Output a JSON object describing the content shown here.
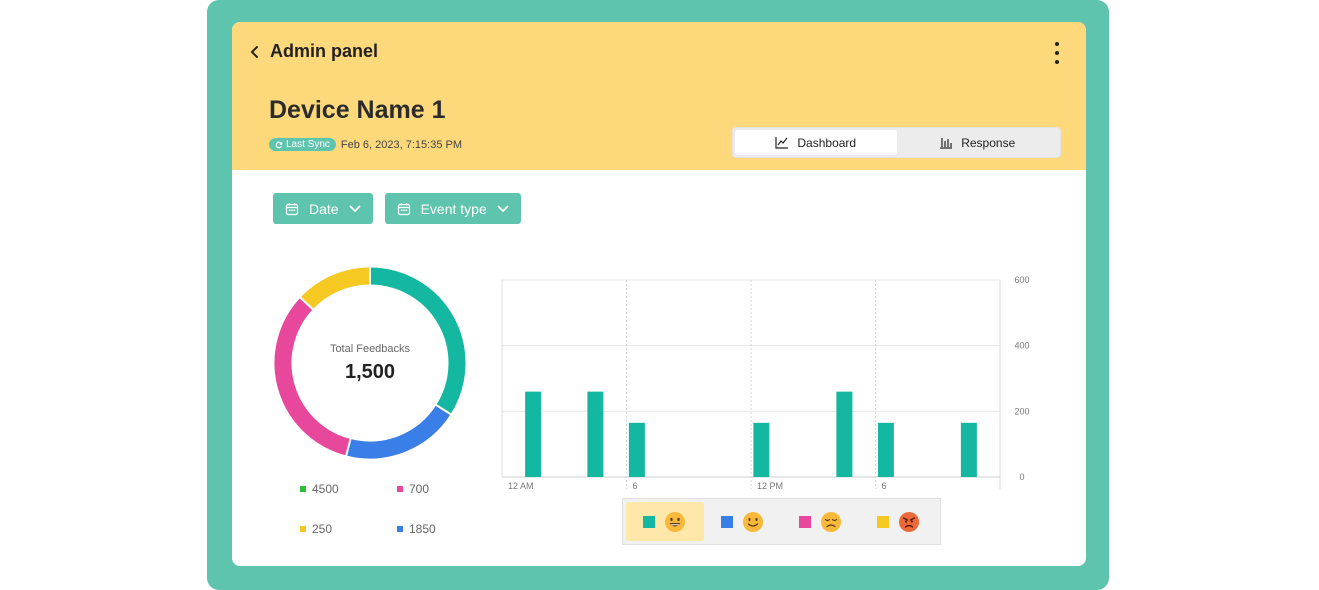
{
  "header": {
    "title": "Admin panel",
    "device_name": "Device Name 1",
    "sync_badge": "Last Sync",
    "sync_time": "Feb 6, 2023, 7:15:35 PM",
    "tabs": [
      {
        "label": "Dashboard",
        "icon": "line-chart-icon",
        "active": true
      },
      {
        "label": "Response",
        "icon": "bar-chart-icon",
        "active": false
      }
    ]
  },
  "filters": [
    {
      "label": "Date",
      "icon": "calendar-icon"
    },
    {
      "label": "Event type",
      "icon": "calendar-icon"
    }
  ],
  "donut": {
    "label": "Total Feedbacks",
    "total": "1,500"
  },
  "legend": [
    {
      "value": "4500",
      "color": "#2bbf3a"
    },
    {
      "value": "700",
      "color": "#e8489c"
    },
    {
      "value": "250",
      "color": "#f6c822"
    },
    {
      "value": "1850",
      "color": "#3a7ee8"
    }
  ],
  "emoji_filter": [
    {
      "name": "very-happy-face-icon",
      "color": "#14b8a0",
      "active": true
    },
    {
      "name": "smile-face-icon",
      "color": "#3a7ee8",
      "active": false
    },
    {
      "name": "sad-face-icon",
      "color": "#e8489c",
      "active": false
    },
    {
      "name": "angry-face-icon",
      "color": "#f6c822",
      "active": false
    }
  ],
  "colors": {
    "frame": "#5fc4ae",
    "header": "#fdd97c",
    "teal": "#14b8a0",
    "blue": "#3a7ee8",
    "pink": "#e8489c",
    "yellow": "#f6c822"
  },
  "chart_data": [
    {
      "type": "pie",
      "title": "",
      "categories": [
        "teal",
        "blue",
        "pink",
        "yellow"
      ],
      "values": [
        34,
        20,
        33,
        13
      ],
      "center_text": "Total Feedbacks 1,500"
    },
    {
      "type": "bar",
      "title": "",
      "xlabel": "",
      "ylabel": "",
      "x_tick_labels": [
        "12 AM",
        "6",
        "12 PM",
        "6"
      ],
      "y_ticks": [
        0,
        200,
        400,
        600
      ],
      "ylim": [
        0,
        600
      ],
      "y_axis_side": "right",
      "grid": true,
      "x": [
        1.5,
        4.5,
        6.5,
        12.5,
        16.5,
        18.5,
        22.5
      ],
      "xlim": [
        0,
        24
      ],
      "values": [
        260,
        260,
        165,
        165,
        260,
        165,
        165
      ]
    }
  ]
}
